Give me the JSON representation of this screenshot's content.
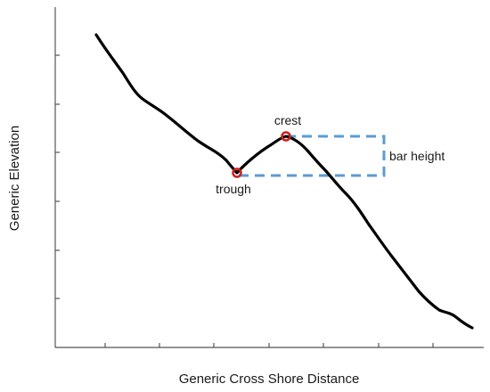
{
  "figure": {
    "xlabel": "Generic Cross Shore Distance",
    "ylabel": "Generic Elevation"
  },
  "annotations": {
    "crest": "crest",
    "trough": "trough",
    "bar_height": "bar height"
  },
  "colors": {
    "profile": "#000000",
    "markers": "#cc1f1f",
    "bar_height_box": "#5b9bd5",
    "axes": "#555555"
  }
}
